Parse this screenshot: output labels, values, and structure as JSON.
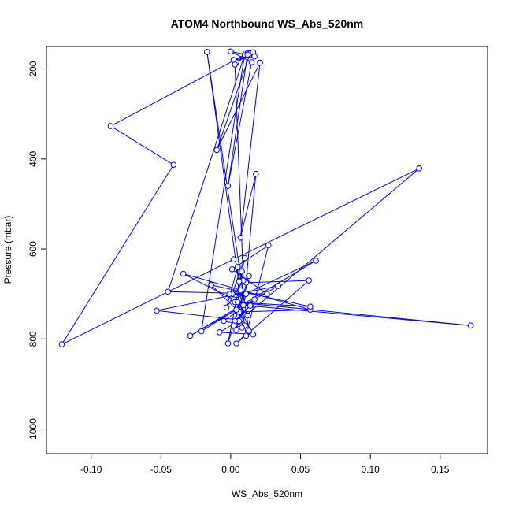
{
  "chart_data": {
    "type": "line",
    "title": "ATOM4 Northbound WS_Abs_520nm",
    "xlabel": "WS_Abs_520nm",
    "ylabel": "Pressure (mbar)",
    "xlim": [
      -0.132,
      0.184
    ],
    "ylim": [
      1055,
      150
    ],
    "y_reversed": true,
    "grid": false,
    "line_color": "#0000ff",
    "marker": "open-circle",
    "x_ticks": [
      {
        "value": -0.1,
        "label": "-0.10"
      },
      {
        "value": -0.05,
        "label": "-0.05"
      },
      {
        "value": 0.0,
        "label": "0.00"
      },
      {
        "value": 0.05,
        "label": "0.05"
      },
      {
        "value": 0.1,
        "label": "0.10"
      },
      {
        "value": 0.15,
        "label": "0.15"
      }
    ],
    "y_ticks": [
      {
        "value": 200,
        "label": "200"
      },
      {
        "value": 400,
        "label": "400"
      },
      {
        "value": 600,
        "label": "600"
      },
      {
        "value": 800,
        "label": "800"
      },
      {
        "value": 1000,
        "label": "1000"
      }
    ],
    "series": [
      {
        "x": [
          0.012,
          -0.086,
          -0.041,
          -0.121,
          0.002,
          0.135,
          0.007,
          -0.053,
          0.034,
          -0.029,
          0.061,
          0.002,
          -0.034,
          0.057,
          0.006,
          -0.014,
          0.057,
          0.003,
          0.172,
          0.009,
          -0.021,
          0.01,
          -0.045,
          0.026,
          0.001,
          0.027,
          0.011,
          -0.017,
          0.013,
          0.004,
          0.056,
          0.011,
          0.018,
          0.007,
          0.021,
          -0.01,
          0.014,
          0.004,
          0.016,
          0.002,
          0.017,
          0.0,
          0.015,
          -0.002,
          0.012,
          0.003,
          0.009,
          -0.003,
          0.005,
          0.006,
          -0.008,
          0.016,
          0.001,
          0.01,
          -0.002,
          0.013,
          0.004,
          0.011,
          -0.001,
          0.007,
          0.003,
          0.014,
          0.005,
          0.012,
          0.004,
          0.01,
          -0.005,
          0.017,
          0.002,
          0.008,
          0.008,
          0.006
        ],
        "y": [
          165,
          327,
          413,
          812,
          623,
          421,
          758,
          737,
          682,
          793,
          626,
          712,
          655,
          735,
          740,
          680,
          728,
          718,
          770,
          725,
          783,
          168,
          695,
          700,
          645,
          592,
          793,
          162,
          782,
          810,
          670,
          675,
          433,
          575,
          186,
          380,
          165,
          185,
          163,
          180,
          172,
          161,
          185,
          460,
          168,
          190,
          670,
          730,
          640,
          760,
          785,
          790,
          700,
          620,
          810,
          660,
          780,
          700,
          700,
          692,
          760,
          726,
          718,
          748,
          735,
          770,
          760,
          712,
          770,
          775,
          650,
          672
        ]
      }
    ]
  }
}
